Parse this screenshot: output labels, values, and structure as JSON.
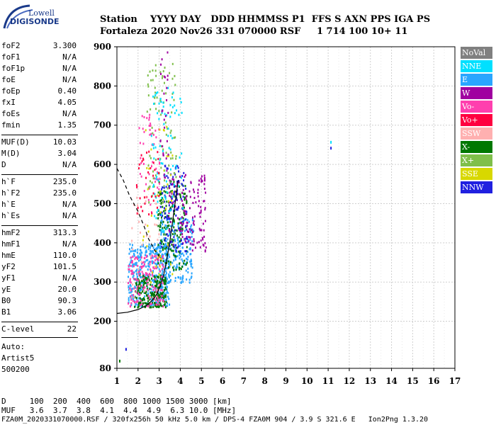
{
  "logo": {
    "line1": "Lowell",
    "line2": "DIGISONDE"
  },
  "header": {
    "line1": "Station    YYYY DAY   DDD HHMMSS P1  FFS S AXN PPS IGA PS",
    "line2": "Fortaleza 2020 Nov26 331 070000 RSF     1 714 100 10+ 11"
  },
  "params": {
    "group1": [
      {
        "k": "foF2",
        "v": "3.300"
      },
      {
        "k": "foF1",
        "v": "N/A"
      },
      {
        "k": "foF1p",
        "v": "N/A"
      },
      {
        "k": "foE",
        "v": "N/A"
      },
      {
        "k": "foEp",
        "v": "0.40"
      },
      {
        "k": "fxI",
        "v": "4.05"
      },
      {
        "k": "foEs",
        "v": "N/A"
      },
      {
        "k": "fmin",
        "v": "1.35"
      }
    ],
    "group2": [
      {
        "k": "MUF(D)",
        "v": "10.03"
      },
      {
        "k": "M(D)",
        "v": "3.04"
      },
      {
        "k": "D",
        "v": "N/A"
      }
    ],
    "group3": [
      {
        "k": "h`F",
        "v": "235.0"
      },
      {
        "k": "h`F2",
        "v": "235.0"
      },
      {
        "k": "h`E",
        "v": "N/A"
      },
      {
        "k": "h`Es",
        "v": "N/A"
      }
    ],
    "group4": [
      {
        "k": "hmF2",
        "v": "313.3"
      },
      {
        "k": "hmF1",
        "v": "N/A"
      },
      {
        "k": "hmE",
        "v": "110.0"
      },
      {
        "k": "yF2",
        "v": "101.5"
      },
      {
        "k": "yF1",
        "v": "N/A"
      },
      {
        "k": "yE",
        "v": "20.0"
      },
      {
        "k": "B0",
        "v": "90.3"
      },
      {
        "k": "B1",
        "v": "3.06"
      }
    ],
    "clevel": {
      "k": "C-level",
      "v": "22"
    },
    "auto": [
      "Auto:",
      "Artist5",
      "500200"
    ]
  },
  "legend": [
    {
      "label": "NoVal",
      "color": "#808080"
    },
    {
      "label": "NNE",
      "color": "#00e0ff"
    },
    {
      "label": "E",
      "color": "#2aa6ff"
    },
    {
      "label": "W",
      "color": "#a000a0"
    },
    {
      "label": "Vo-",
      "color": "#ff3fae"
    },
    {
      "label": "Vo+",
      "color": "#ff0040"
    },
    {
      "label": "SSW",
      "color": "#ffb0b0"
    },
    {
      "label": "X-",
      "color": "#007800"
    },
    {
      "label": "X+",
      "color": "#7fbf4a"
    },
    {
      "label": "SSE",
      "color": "#d8d800"
    },
    {
      "label": "NNW",
      "color": "#2020e0"
    }
  ],
  "footer": {
    "d_line": "D     100  200  400  600  800 1000 1500 3000 [km]",
    "muf_line": "MUF   3.6  3.7  3.8  4.1  4.4  4.9  6.3 10.0 [MHz]",
    "info_line": "FZA0M_2020331070000.RSF / 320fx256h 50 kHz 5.0 km / DPS-4 FZA0M 904 / 3.9 S 321.6 E   Ion2Png 1.3.20"
  },
  "chart_data": {
    "type": "scatter",
    "xlim": [
      1,
      17
    ],
    "ylim": [
      80,
      900
    ],
    "xticks": [
      "1",
      "2",
      "3",
      "4",
      "5",
      "6",
      "7",
      "8",
      "9",
      "10",
      "11",
      "12",
      "13",
      "14",
      "15",
      "16",
      "17"
    ],
    "yticks": [
      "80",
      "200",
      "300",
      "400",
      "500",
      "600",
      "700",
      "800",
      "900"
    ],
    "ytick_values": [
      80,
      200,
      300,
      400,
      500,
      600,
      700,
      800,
      900
    ],
    "grid": true,
    "legend_position": "right",
    "profile_solid": [
      [
        1.0,
        220
      ],
      [
        1.5,
        223
      ],
      [
        2.0,
        230
      ],
      [
        2.4,
        240
      ],
      [
        2.7,
        255
      ],
      [
        2.9,
        270
      ],
      [
        3.05,
        290
      ],
      [
        3.2,
        315
      ],
      [
        3.3,
        340
      ],
      [
        3.4,
        370
      ],
      [
        3.5,
        400
      ],
      [
        3.6,
        440
      ],
      [
        3.7,
        480
      ],
      [
        3.8,
        520
      ],
      [
        3.9,
        560
      ]
    ],
    "profile_dashed": [
      [
        1.0,
        590
      ],
      [
        1.3,
        560
      ],
      [
        1.6,
        520
      ],
      [
        2.0,
        480
      ],
      [
        2.3,
        440
      ],
      [
        2.5,
        410
      ],
      [
        2.8,
        380
      ],
      [
        3.0,
        365
      ]
    ],
    "echo_clusters": [
      {
        "color": "#2aa6ff",
        "x": [
          1.5,
          3.5
        ],
        "y": [
          240,
          400
        ],
        "n": 420
      },
      {
        "color": "#2aa6ff",
        "x": [
          3.0,
          4.6
        ],
        "y": [
          300,
          470
        ],
        "n": 220
      },
      {
        "color": "#007800",
        "x": [
          1.8,
          3.3
        ],
        "y": [
          238,
          320
        ],
        "n": 220
      },
      {
        "color": "#007800",
        "x": [
          2.9,
          4.3
        ],
        "y": [
          330,
          560
        ],
        "n": 170
      },
      {
        "color": "#ff3fae",
        "x": [
          1.5,
          3.2
        ],
        "y": [
          240,
          370
        ],
        "n": 150
      },
      {
        "color": "#ff3fae",
        "x": [
          2.0,
          3.0
        ],
        "y": [
          480,
          730
        ],
        "n": 50
      },
      {
        "color": "#a000a0",
        "x": [
          3.4,
          5.2
        ],
        "y": [
          380,
          580
        ],
        "n": 140
      },
      {
        "color": "#2020e0",
        "x": [
          3.0,
          4.3
        ],
        "y": [
          380,
          600
        ],
        "n": 110
      },
      {
        "color": "#7fbf4a",
        "x": [
          2.4,
          3.8
        ],
        "y": [
          500,
          860
        ],
        "n": 90
      },
      {
        "color": "#00e0ff",
        "x": [
          2.6,
          4.1
        ],
        "y": [
          420,
          800
        ],
        "n": 90
      },
      {
        "color": "#ff0040",
        "x": [
          1.8,
          3.0
        ],
        "y": [
          470,
          640
        ],
        "n": 35
      },
      {
        "color": "#d8d800",
        "x": [
          2.2,
          3.6
        ],
        "y": [
          300,
          700
        ],
        "n": 40
      },
      {
        "color": "#ffb0b0",
        "x": [
          1.6,
          3.0
        ],
        "y": [
          250,
          520
        ],
        "n": 40
      },
      {
        "color": "#a000a0",
        "x": [
          3.0,
          3.4
        ],
        "y": [
          560,
          890
        ],
        "n": 30
      }
    ],
    "isolated_points": [
      {
        "x": 11.1,
        "y": 660,
        "color": "#00e0ff"
      },
      {
        "x": 11.1,
        "y": 645,
        "color": "#2020e0"
      },
      {
        "x": 1.4,
        "y": 132,
        "color": "#2020e0"
      },
      {
        "x": 1.1,
        "y": 102,
        "color": "#007800"
      }
    ]
  }
}
